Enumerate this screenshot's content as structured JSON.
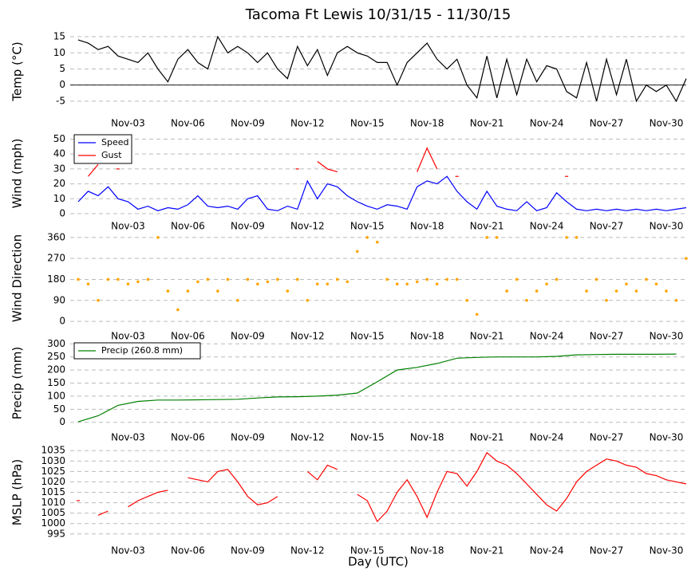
{
  "title": "Tacoma Ft Lewis 10/31/15 - 11/30/15",
  "xlabel": "Day (UTC)",
  "chart_data": [
    {
      "type": "line",
      "ylabel": "Temp ($^\\circ$C)",
      "zero_line": true,
      "grid": true,
      "xlim": [
        0.1,
        31
      ],
      "ylim": [
        -8,
        16.5
      ],
      "yticks": [
        -5,
        0,
        5,
        10,
        15
      ],
      "xticks": [
        {
          "value": 3,
          "label": "Nov-03"
        },
        {
          "value": 6,
          "label": "Nov-06"
        },
        {
          "value": 9,
          "label": "Nov-09"
        },
        {
          "value": 12,
          "label": "Nov-12"
        },
        {
          "value": 15,
          "label": "Nov-15"
        },
        {
          "value": 18,
          "label": "Nov-18"
        },
        {
          "value": 21,
          "label": "Nov-21"
        },
        {
          "value": 24,
          "label": "Nov-24"
        },
        {
          "value": 27,
          "label": "Nov-27"
        },
        {
          "value": 30,
          "label": "Nov-30"
        }
      ],
      "x": [
        0.5,
        1,
        1.5,
        2,
        2.5,
        3,
        3.5,
        4,
        4.5,
        5,
        5.5,
        6,
        6.5,
        7,
        7.5,
        8,
        8.5,
        9,
        9.5,
        10,
        10.5,
        11,
        11.5,
        12,
        12.5,
        13,
        13.5,
        14,
        14.5,
        15,
        15.5,
        16,
        16.5,
        17,
        17.5,
        18,
        18.5,
        19,
        19.5,
        20,
        20.5,
        21,
        21.5,
        22,
        22.5,
        23,
        23.5,
        24,
        24.5,
        25,
        25.5,
        26,
        26.5,
        27,
        27.5,
        28,
        28.5,
        29,
        29.5,
        30,
        30.5,
        31
      ],
      "series": [
        {
          "color": "#000000",
          "values": [
            14,
            13,
            11,
            12,
            9,
            8,
            7,
            10,
            5,
            1,
            8,
            11,
            7,
            5,
            15,
            10,
            12,
            10,
            7,
            10,
            5,
            2,
            12,
            6,
            11,
            3,
            10,
            12,
            10,
            9,
            7,
            7,
            0,
            7,
            10,
            13,
            8,
            5,
            8,
            0,
            -4,
            9,
            -4,
            8,
            -3,
            8,
            1,
            6,
            5,
            -2,
            -4,
            7,
            -5,
            8,
            -3,
            8,
            -5,
            0,
            -2,
            0,
            -5,
            2
          ]
        }
      ]
    },
    {
      "type": "line",
      "ylabel": "Wind (mph)",
      "grid": true,
      "legend": "upper left",
      "xlim": [
        0.1,
        31
      ],
      "ylim": [
        0,
        54
      ],
      "yticks": [
        0,
        10,
        20,
        30,
        40,
        50
      ],
      "xticks": [
        {
          "value": 3,
          "label": "Nov-03"
        },
        {
          "value": 6,
          "label": "Nov-06"
        },
        {
          "value": 9,
          "label": "Nov-09"
        },
        {
          "value": 12,
          "label": "Nov-12"
        },
        {
          "value": 15,
          "label": "Nov-15"
        },
        {
          "value": 18,
          "label": "Nov-18"
        },
        {
          "value": 21,
          "label": "Nov-21"
        },
        {
          "value": 24,
          "label": "Nov-24"
        },
        {
          "value": 27,
          "label": "Nov-27"
        },
        {
          "value": 30,
          "label": "Nov-30"
        }
      ],
      "x": [
        0.5,
        1,
        1.5,
        2,
        2.5,
        3,
        3.5,
        4,
        4.5,
        5,
        5.5,
        6,
        6.5,
        7,
        7.5,
        8,
        8.5,
        9,
        9.5,
        10,
        10.5,
        11,
        11.5,
        12,
        12.5,
        13,
        13.5,
        14,
        14.5,
        15,
        15.5,
        16,
        16.5,
        17,
        17.5,
        18,
        18.5,
        19,
        19.5,
        20,
        20.5,
        21,
        21.5,
        22,
        22.5,
        23,
        23.5,
        24,
        24.5,
        25,
        25.5,
        26,
        26.5,
        27,
        27.5,
        28,
        28.5,
        29,
        29.5,
        30,
        30.5,
        31
      ],
      "series": [
        {
          "name": "Speed",
          "color": "#0000ff",
          "values": [
            8,
            15,
            12,
            18,
            10,
            8,
            3,
            5,
            2,
            4,
            3,
            6,
            12,
            5,
            4,
            5,
            3,
            10,
            12,
            3,
            2,
            5,
            3,
            22,
            10,
            20,
            18,
            12,
            8,
            5,
            3,
            6,
            5,
            3,
            18,
            22,
            20,
            25,
            15,
            8,
            3,
            15,
            5,
            3,
            2,
            8,
            2,
            4,
            14,
            8,
            3,
            2,
            3,
            2,
            3,
            2,
            3,
            2,
            3,
            2,
            3,
            4
          ]
        },
        {
          "name": "Gust",
          "color": "#ff0000",
          "values": [
            null,
            25,
            33,
            null,
            30,
            null,
            null,
            null,
            null,
            null,
            null,
            null,
            null,
            null,
            null,
            null,
            null,
            null,
            null,
            null,
            null,
            null,
            30,
            null,
            35,
            30,
            28,
            null,
            null,
            null,
            null,
            null,
            null,
            null,
            28,
            44,
            30,
            null,
            25,
            null,
            null,
            null,
            null,
            null,
            null,
            null,
            null,
            null,
            null,
            25,
            null,
            null,
            null,
            null,
            null,
            null,
            null,
            null,
            null,
            null,
            null,
            null
          ]
        }
      ]
    },
    {
      "type": "scatter",
      "ylabel": "Wind Direction",
      "grid": true,
      "xlim": [
        0.1,
        31
      ],
      "ylim": [
        -10,
        380
      ],
      "yticks": [
        0,
        90,
        180,
        270,
        360
      ],
      "xticks": [
        {
          "value": 3,
          "label": "Nov-03"
        },
        {
          "value": 6,
          "label": "Nov-06"
        },
        {
          "value": 9,
          "label": "Nov-09"
        },
        {
          "value": 12,
          "label": "Nov-12"
        },
        {
          "value": 15,
          "label": "Nov-15"
        },
        {
          "value": 18,
          "label": "Nov-18"
        },
        {
          "value": 21,
          "label": "Nov-21"
        },
        {
          "value": 24,
          "label": "Nov-24"
        },
        {
          "value": 27,
          "label": "Nov-27"
        },
        {
          "value": 30,
          "label": "Nov-30"
        }
      ],
      "x": [
        0.5,
        1,
        1.5,
        2,
        2.5,
        3,
        3.5,
        4,
        4.5,
        5,
        5.5,
        6,
        6.5,
        7,
        7.5,
        8,
        8.5,
        9,
        9.5,
        10,
        10.5,
        11,
        11.5,
        12,
        12.5,
        13,
        13.5,
        14,
        14.5,
        15,
        15.5,
        16,
        16.5,
        17,
        17.5,
        18,
        18.5,
        19,
        19.5,
        20,
        20.5,
        21,
        21.5,
        22,
        22.5,
        23,
        23.5,
        24,
        24.5,
        25,
        25.5,
        26,
        26.5,
        27,
        27.5,
        28,
        28.5,
        29,
        29.5,
        30,
        30.5,
        31
      ],
      "series": [
        {
          "color": "#ffa500",
          "values": [
            180,
            160,
            90,
            180,
            180,
            160,
            170,
            180,
            360,
            130,
            50,
            130,
            170,
            180,
            130,
            180,
            90,
            180,
            160,
            170,
            180,
            130,
            180,
            90,
            160,
            160,
            180,
            170,
            300,
            360,
            340,
            180,
            160,
            160,
            170,
            180,
            160,
            180,
            180,
            90,
            30,
            360,
            360,
            130,
            180,
            90,
            130,
            160,
            180,
            360,
            360,
            130,
            180,
            90,
            130,
            160,
            130,
            180,
            160,
            130,
            90,
            270
          ]
        }
      ]
    },
    {
      "type": "line",
      "ylabel": "Precip (mm)",
      "grid": true,
      "legend": "upper left",
      "xlim": [
        0.1,
        31
      ],
      "ylim": [
        -10,
        310
      ],
      "yticks": [
        0,
        50,
        100,
        150,
        200,
        250,
        300
      ],
      "xticks": [
        {
          "value": 3,
          "label": "Nov-03"
        },
        {
          "value": 6,
          "label": "Nov-06"
        },
        {
          "value": 9,
          "label": "Nov-09"
        },
        {
          "value": 12,
          "label": "Nov-12"
        },
        {
          "value": 15,
          "label": "Nov-15"
        },
        {
          "value": 18,
          "label": "Nov-18"
        },
        {
          "value": 21,
          "label": "Nov-21"
        },
        {
          "value": 24,
          "label": "Nov-24"
        },
        {
          "value": 27,
          "label": "Nov-27"
        },
        {
          "value": 30,
          "label": "Nov-30"
        }
      ],
      "x": [
        0.5,
        1.5,
        2.5,
        3.5,
        4.5,
        5.5,
        6.5,
        7.5,
        8.5,
        9.5,
        10.5,
        11.5,
        12.5,
        13.5,
        14.5,
        15.5,
        16.5,
        17.5,
        18.5,
        19.5,
        20.5,
        21.5,
        22.5,
        23.5,
        24.5,
        25.5,
        26.5,
        27.5,
        28.5,
        29.5,
        30.5
      ],
      "series": [
        {
          "name": "Precip (260.8 mm)",
          "color": "#008000",
          "values": [
            2,
            25,
            65,
            80,
            85,
            85,
            86,
            87,
            88,
            93,
            97,
            98,
            100,
            104,
            112,
            155,
            200,
            210,
            225,
            245,
            248,
            250,
            250,
            250,
            252,
            258,
            259,
            260,
            260,
            260,
            261
          ]
        }
      ]
    },
    {
      "type": "line",
      "ylabel": "MSLP (hPa)",
      "grid": true,
      "xlim": [
        0.1,
        31
      ],
      "ylim": [
        993,
        1037
      ],
      "yticks": [
        995,
        1000,
        1005,
        1010,
        1015,
        1020,
        1025,
        1030,
        1035
      ],
      "xticks": [
        {
          "value": 3,
          "label": "Nov-03"
        },
        {
          "value": 6,
          "label": "Nov-06"
        },
        {
          "value": 9,
          "label": "Nov-09"
        },
        {
          "value": 12,
          "label": "Nov-12"
        },
        {
          "value": 15,
          "label": "Nov-15"
        },
        {
          "value": 18,
          "label": "Nov-18"
        },
        {
          "value": 21,
          "label": "Nov-21"
        },
        {
          "value": 24,
          "label": "Nov-24"
        },
        {
          "value": 27,
          "label": "Nov-27"
        },
        {
          "value": 30,
          "label": "Nov-30"
        }
      ],
      "x": [
        0.5,
        1,
        1.5,
        2,
        2.5,
        3,
        3.5,
        4,
        4.5,
        5,
        5.5,
        6,
        6.5,
        7,
        7.5,
        8,
        8.5,
        9,
        9.5,
        10,
        10.5,
        11,
        11.5,
        12,
        12.5,
        13,
        13.5,
        14,
        14.5,
        15,
        15.5,
        16,
        16.5,
        17,
        17.5,
        18,
        18.5,
        19,
        19.5,
        20,
        20.5,
        21,
        21.5,
        22,
        22.5,
        23,
        23.5,
        24,
        24.5,
        25,
        25.5,
        26,
        26.5,
        27,
        27.5,
        28,
        28.5,
        29,
        29.5,
        30,
        30.5,
        31
      ],
      "series": [
        {
          "color": "#ff0000",
          "values": [
            1011,
            null,
            1004,
            1006,
            null,
            1008,
            1011,
            1013,
            1015,
            1016,
            null,
            1022,
            1021,
            1020,
            1025,
            1026,
            1020,
            1013,
            1009,
            1010,
            1013,
            null,
            null,
            1025,
            1021,
            1028,
            1026,
            null,
            1014,
            1011,
            1001,
            1006,
            1015,
            1021,
            1013,
            1003,
            1015,
            1025,
            1024,
            1018,
            1025,
            1034,
            1030,
            1028,
            1024,
            1019,
            1014,
            1009,
            1006,
            1012,
            1020,
            1025,
            1028,
            1031,
            1030,
            1028,
            1027,
            1024,
            1023,
            1021,
            1020,
            1019
          ]
        }
      ]
    }
  ]
}
